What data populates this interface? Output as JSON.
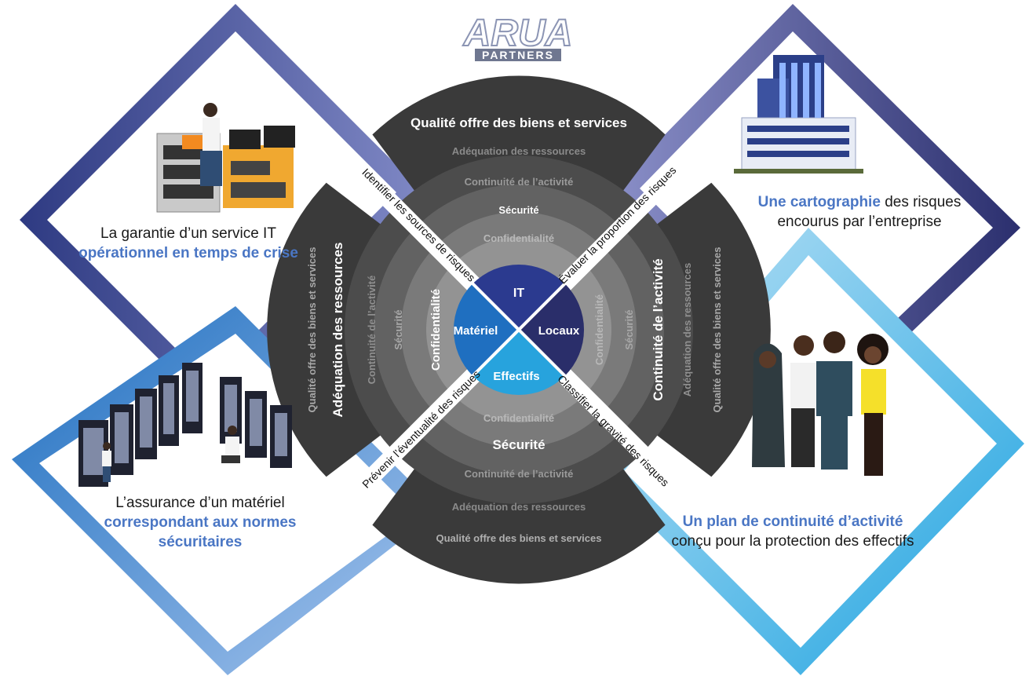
{
  "logo": {
    "mark": "ARUA",
    "sub": "PARTNERS"
  },
  "colors": {
    "accent_blue": "#4a76c4",
    "diamond_left_top": "#2e3a82",
    "diamond_right_bottom": "#2aa6e0",
    "ring_outer": "#3a3a3a",
    "core_it": "#2b3a8f",
    "core_locaux": "#2a2e6a",
    "core_materiel": "#1f6fc0",
    "core_effectifs": "#27a3dd"
  },
  "core": {
    "top": "IT",
    "right": "Locaux",
    "left": "Matériel",
    "bottom": "Effectifs"
  },
  "rings": {
    "top": [
      "Confidentialité",
      "Sécurité",
      "Continuité de l’activité",
      "Adéquation des ressources",
      "Qualité offre des biens et services"
    ],
    "left": [
      "Confidentialité",
      "Sécurité",
      "Continuité de l’activité",
      "Adéquation des ressources",
      "Qualité offre des biens et services"
    ],
    "right": [
      "Confidentialité",
      "Sécurité",
      "Continuité de l’activité",
      "Adéquation des ressources",
      "Qualité offre des biens et services"
    ],
    "bottom": [
      "Confidentialité",
      "Sécurité",
      "Continuité de l’activité",
      "Adéquation des ressources",
      "Qualité offre des biens et services"
    ]
  },
  "diagonals": {
    "top_left": "Identifier les sources de risques",
    "top_right": "Évaluer la proportion des risques",
    "bottom_left": "Prévenir l’éventualité des risques",
    "bottom_right": "Classifier la gravité des risques"
  },
  "captions": {
    "top_left": {
      "pre": "La garantie d’un service IT",
      "hl": "opérationnel en temps de crise",
      "post": ""
    },
    "top_right": {
      "hl": "Une cartographie",
      "post": "des risques encourus par l’entreprise"
    },
    "bottom_left": {
      "pre": "L’assurance d’un matériel",
      "hl": "correspondant aux normes sécuritaires"
    },
    "bottom_right": {
      "hl": "Un plan de continuité d’activité",
      "post": "conçu pour la protection des effectifs"
    }
  },
  "icons": {
    "top_left": "it-technician-icon",
    "top_right": "office-building-icon",
    "bottom_left": "server-room-icon",
    "bottom_right": "staff-group-icon"
  }
}
